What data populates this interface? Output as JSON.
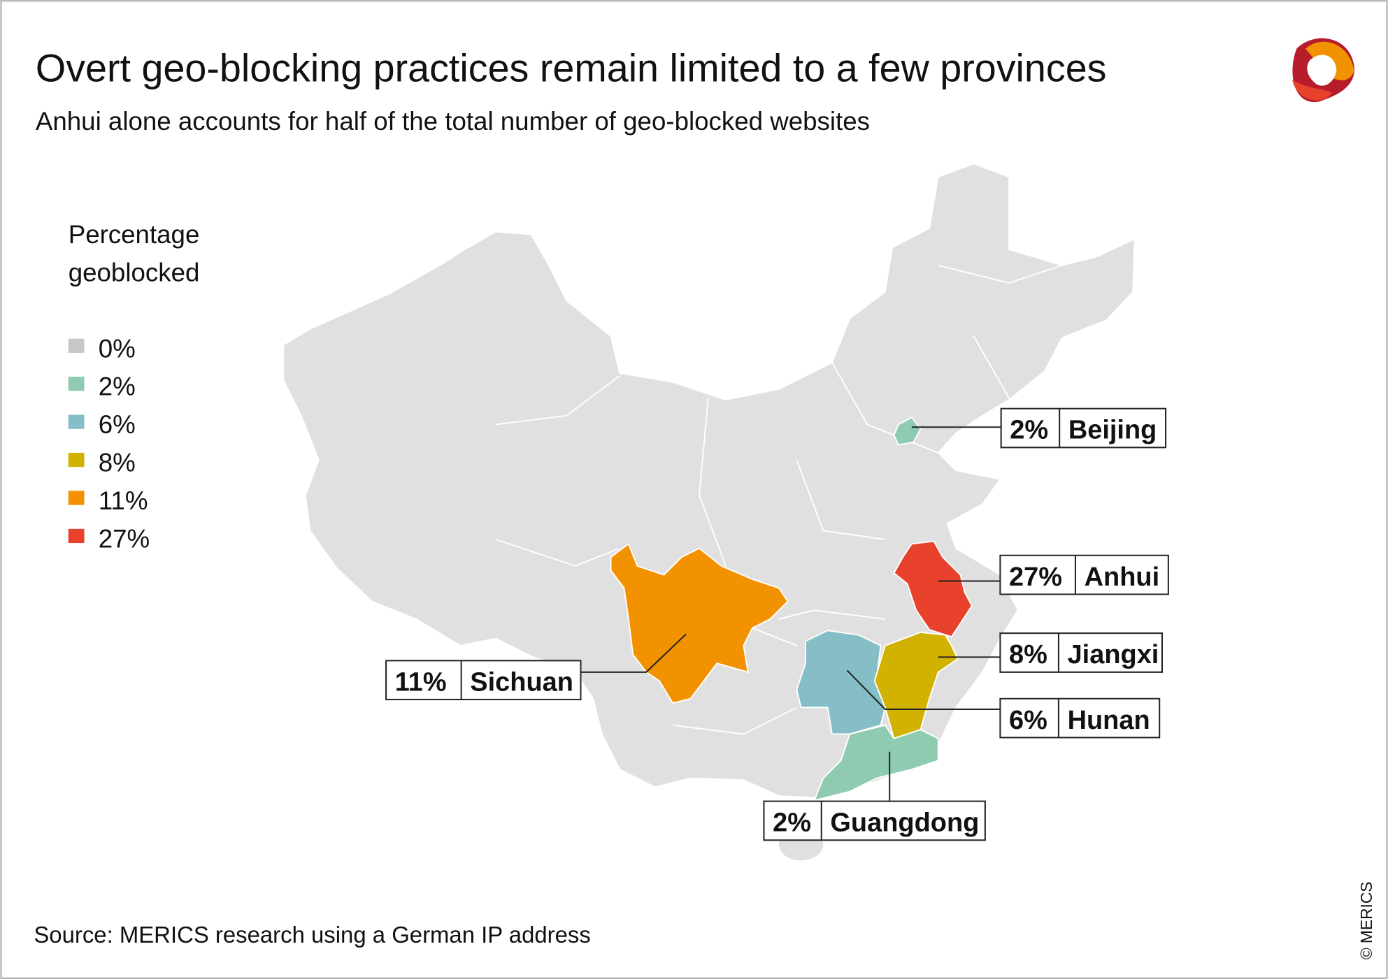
{
  "title": "Overt geo-blocking practices remain limited to a few provinces",
  "subtitle": "Anhui alone accounts for half of the total number of geo-blocked websites",
  "legend": {
    "title_line1": "Percentage",
    "title_line2": "geoblocked",
    "items": [
      {
        "label": "0%",
        "color": "#c8c8c8"
      },
      {
        "label": "2%",
        "color": "#8ecbb0"
      },
      {
        "label": "6%",
        "color": "#86bec8"
      },
      {
        "label": "8%",
        "color": "#d1b200"
      },
      {
        "label": "11%",
        "color": "#f39200"
      },
      {
        "label": "27%",
        "color": "#e8412c"
      }
    ]
  },
  "provinces": {
    "beijing": {
      "pct": "2%",
      "name": "Beijing",
      "color": "#8ecbb0"
    },
    "anhui": {
      "pct": "27%",
      "name": "Anhui",
      "color": "#e8412c"
    },
    "jiangxi": {
      "pct": "8%",
      "name": "Jiangxi",
      "color": "#d1b200"
    },
    "hunan": {
      "pct": "6%",
      "name": "Hunan",
      "color": "#86bec8"
    },
    "sichuan": {
      "pct": "11%",
      "name": "Sichuan",
      "color": "#f39200"
    },
    "guangdong": {
      "pct": "2%",
      "name": "Guangdong",
      "color": "#8ecbb0"
    }
  },
  "map_base_color": "#e0e0e0",
  "source": "Source: MERICS research using a German IP address",
  "copyright": "© MERICS",
  "logo_text": "MERICS"
}
